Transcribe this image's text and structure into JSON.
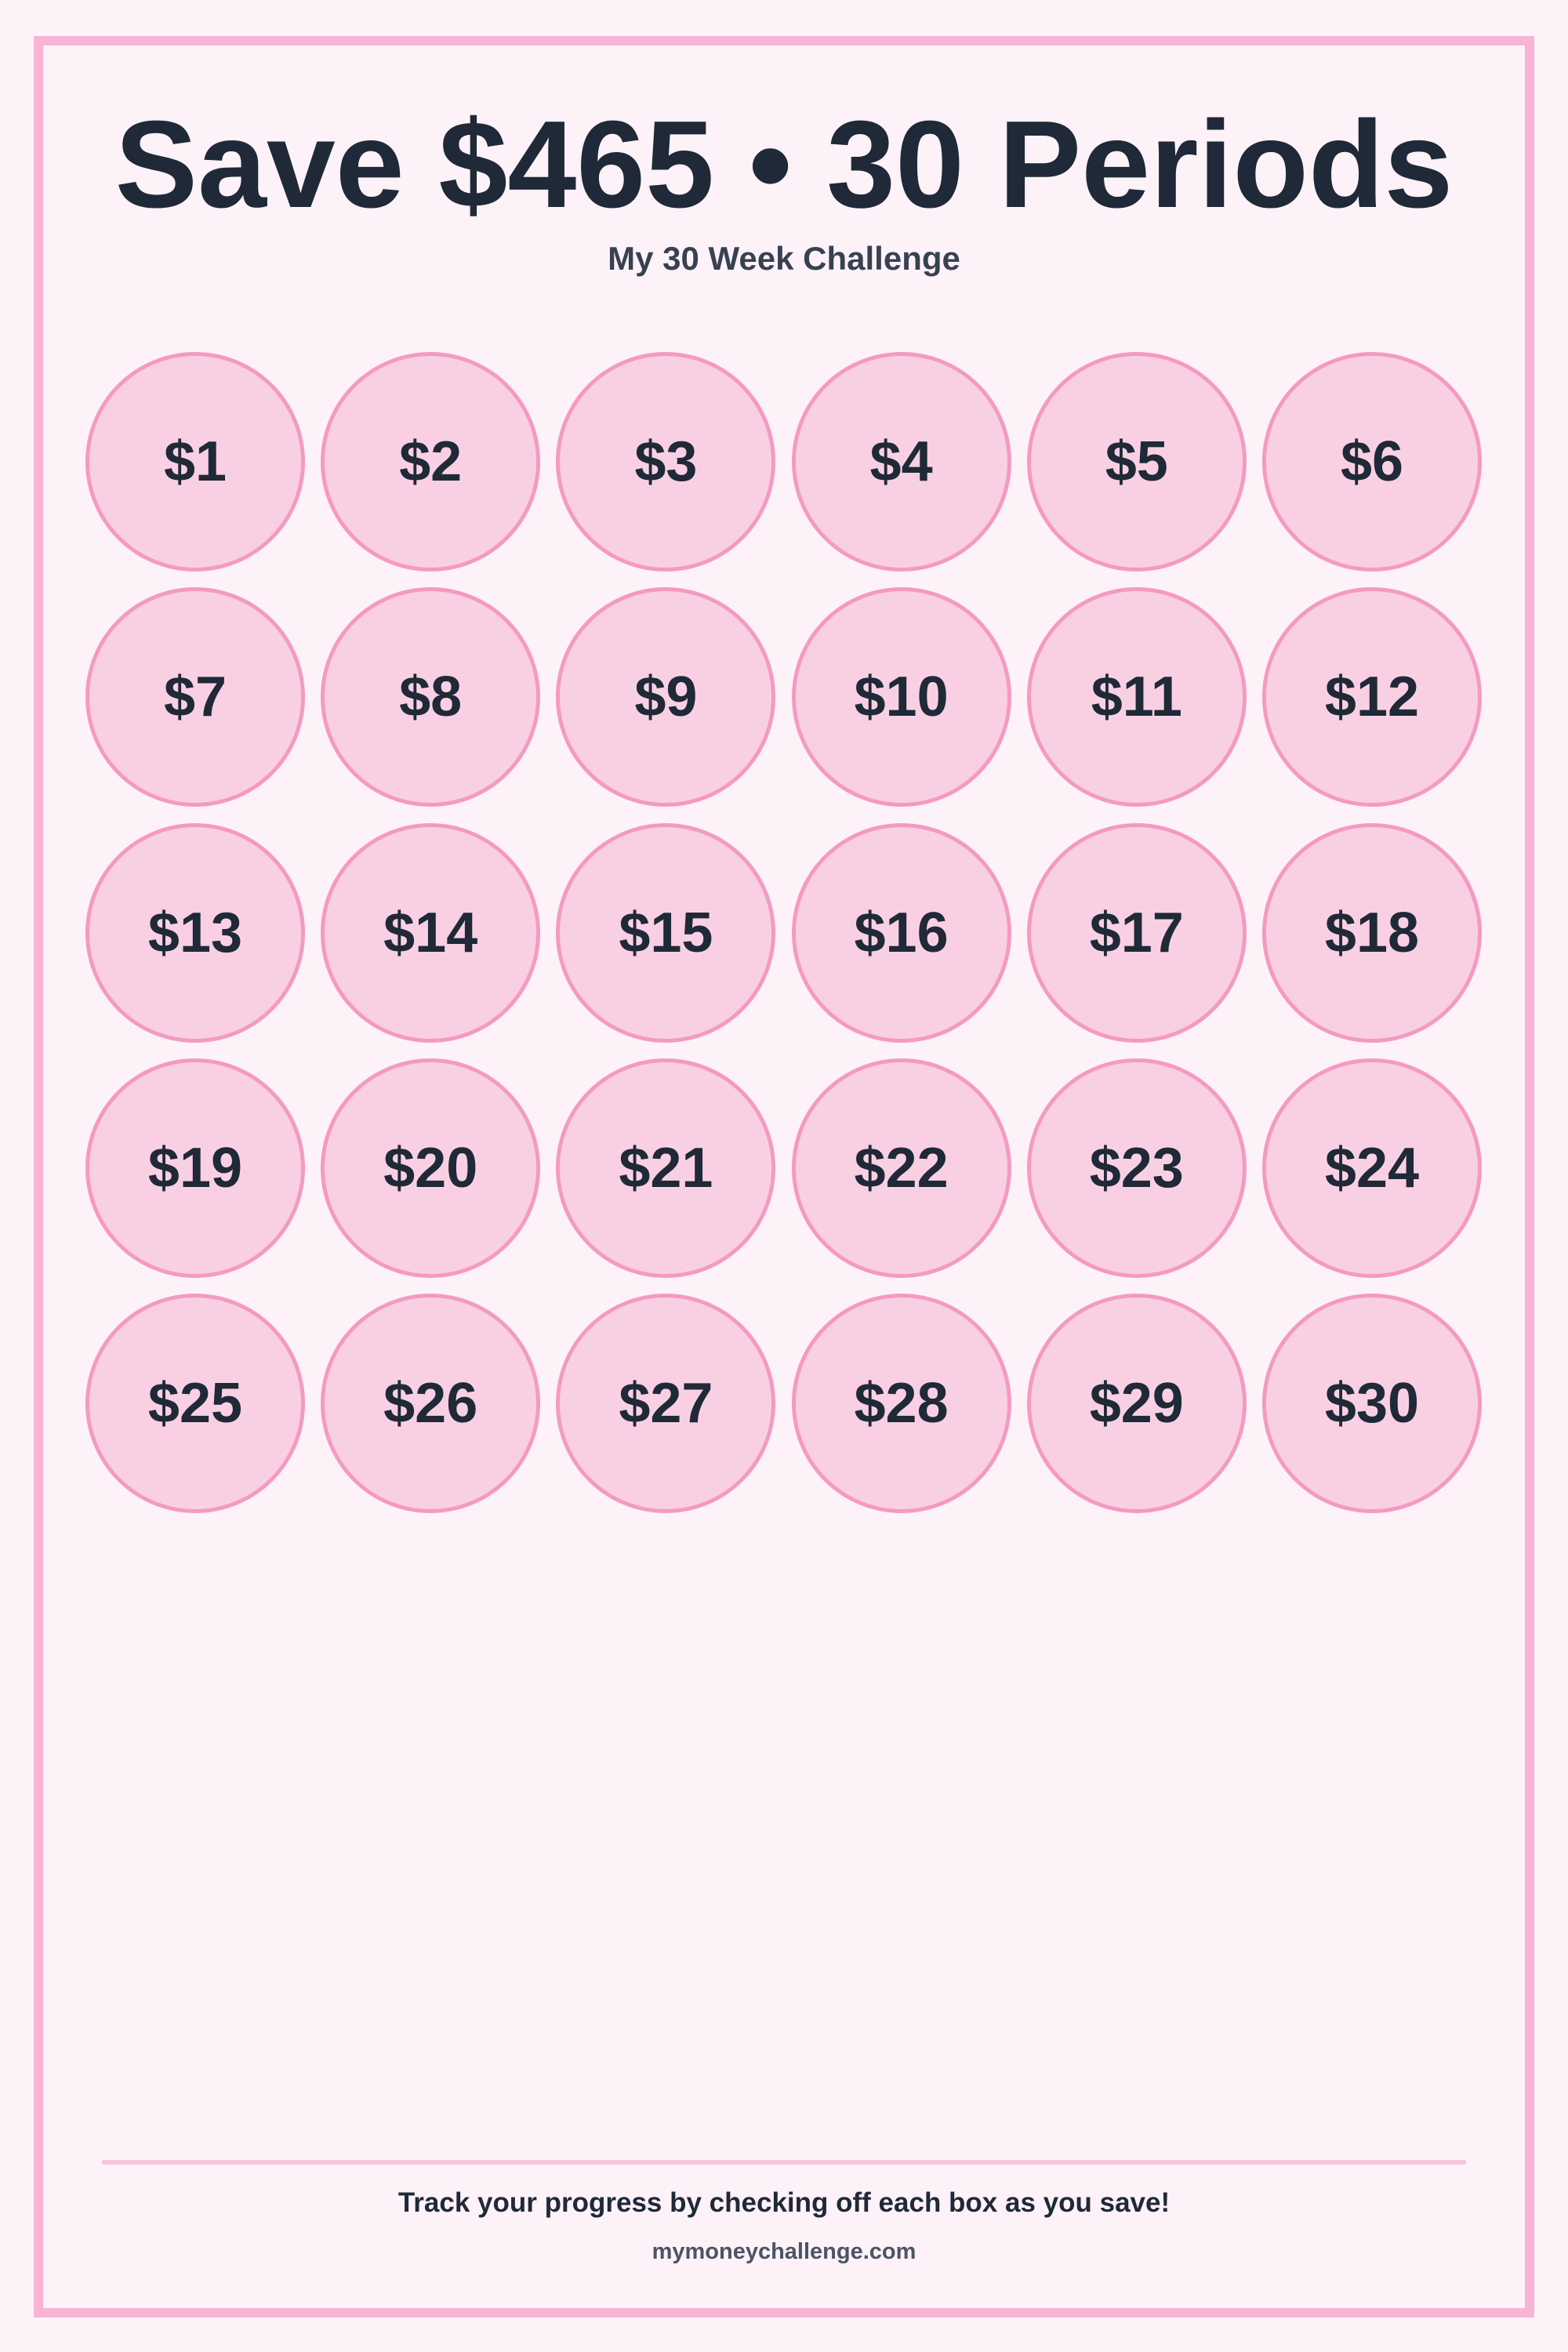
{
  "header": {
    "title": "Save $465 • 30 Periods",
    "subtitle": "My 30 Week Challenge"
  },
  "grid": {
    "columns": 6,
    "amounts": [
      "$1",
      "$2",
      "$3",
      "$4",
      "$5",
      "$6",
      "$7",
      "$8",
      "$9",
      "$10",
      "$11",
      "$12",
      "$13",
      "$14",
      "$15",
      "$16",
      "$17",
      "$18",
      "$19",
      "$20",
      "$21",
      "$22",
      "$23",
      "$24",
      "$25",
      "$26",
      "$27",
      "$28",
      "$29",
      "$30"
    ]
  },
  "footer": {
    "instruction": "Track your progress by checking off each box as you save!",
    "website": "mymoneychallenge.com"
  },
  "colors": {
    "background": "#fdf2f8",
    "frame": "#f8b4d4",
    "circle_fill": "#f9d0e3",
    "circle_stroke": "#f49ac1",
    "text": "#1f2937"
  }
}
